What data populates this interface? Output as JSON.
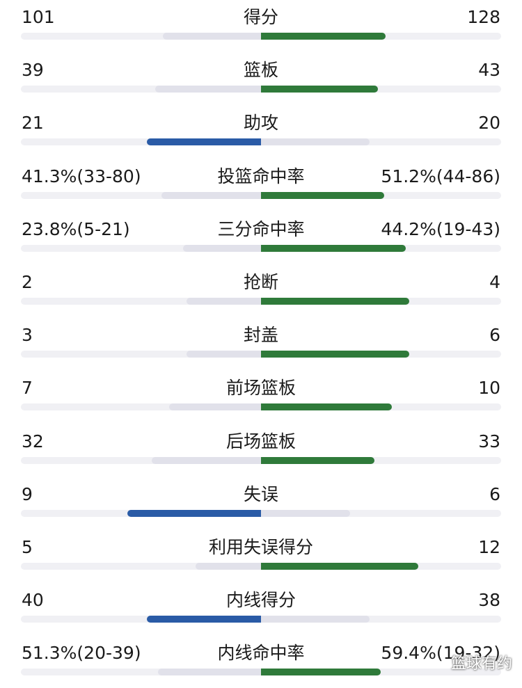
{
  "colors": {
    "win": "#2f7a3a",
    "lose": "#2a5ba6",
    "muted": "#e1e1ea",
    "track": "#f0f0f4"
  },
  "stats": [
    {
      "label": "得分",
      "left": "101",
      "right": "128",
      "left_share": 0.441,
      "right_share": 0.559,
      "winner": "right"
    },
    {
      "label": "篮板",
      "left": "39",
      "right": "43",
      "left_share": 0.476,
      "right_share": 0.524,
      "winner": "right"
    },
    {
      "label": "助攻",
      "left": "21",
      "right": "20",
      "left_share": 0.512,
      "right_share": 0.488,
      "winner": "left"
    },
    {
      "label": "投篮命中率",
      "left": "41.3%(33-80)",
      "right": "51.2%(44-86)",
      "left_share": 0.446,
      "right_share": 0.554,
      "winner": "right"
    },
    {
      "label": "三分命中率",
      "left": "23.8%(5-21)",
      "right": "44.2%(19-43)",
      "left_share": 0.35,
      "right_share": 0.65,
      "winner": "right"
    },
    {
      "label": "抢断",
      "left": "2",
      "right": "4",
      "left_share": 0.333,
      "right_share": 0.667,
      "winner": "right"
    },
    {
      "label": "封盖",
      "left": "3",
      "right": "6",
      "left_share": 0.333,
      "right_share": 0.667,
      "winner": "right"
    },
    {
      "label": "前场篮板",
      "left": "7",
      "right": "10",
      "left_share": 0.412,
      "right_share": 0.588,
      "winner": "right"
    },
    {
      "label": "后场篮板",
      "left": "32",
      "right": "33",
      "left_share": 0.492,
      "right_share": 0.508,
      "winner": "right"
    },
    {
      "label": "失误",
      "left": "9",
      "right": "6",
      "left_share": 0.6,
      "right_share": 0.4,
      "winner": "left"
    },
    {
      "label": "利用失误得分",
      "left": "5",
      "right": "12",
      "left_share": 0.294,
      "right_share": 0.706,
      "winner": "right"
    },
    {
      "label": "内线得分",
      "left": "40",
      "right": "38",
      "left_share": 0.513,
      "right_share": 0.487,
      "winner": "left"
    },
    {
      "label": "内线命中率",
      "left": "51.3%(20-39)",
      "right": "59.4%(19-32)",
      "left_share": 0.463,
      "right_share": 0.537,
      "winner": "right"
    }
  ],
  "watermark": "篮球有约"
}
